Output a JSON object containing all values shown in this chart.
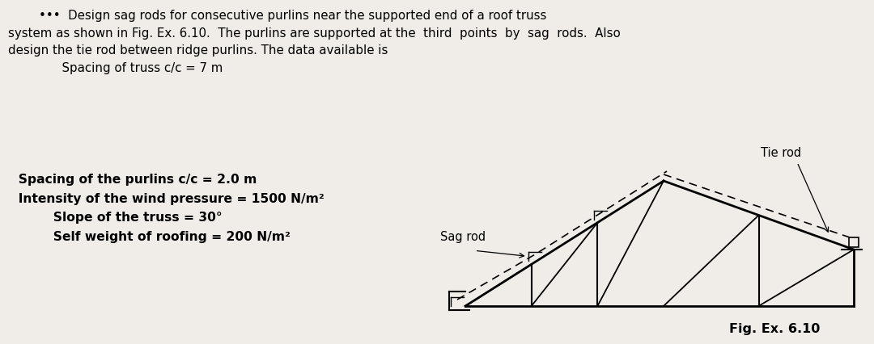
{
  "bg_color": "#f0ede8",
  "fig_label": "Fig. Ex. 6.10",
  "tie_rod_label": "Tie rod",
  "sag_rod_label": "Sag rod",
  "top_para": "        •••  Design sag rods for consecutive purlins near the supported end of a roof truss\nsystem as shown in Fig. Ex. 6.10.  The purlins are supported at the  third  points  by  sag  rods.  Also\ndesign the tie rod between ridge purlins. The data available is\n              Spacing of truss c/c = 7 m",
  "data_lines": [
    "  Spacing of the purlins c/c = 2.0 m",
    "  Intensity of the wind pressure = 1500 N/m²",
    "          Slope of the truss = 30°",
    "          Self weight of roofing = 200 N/m²"
  ]
}
